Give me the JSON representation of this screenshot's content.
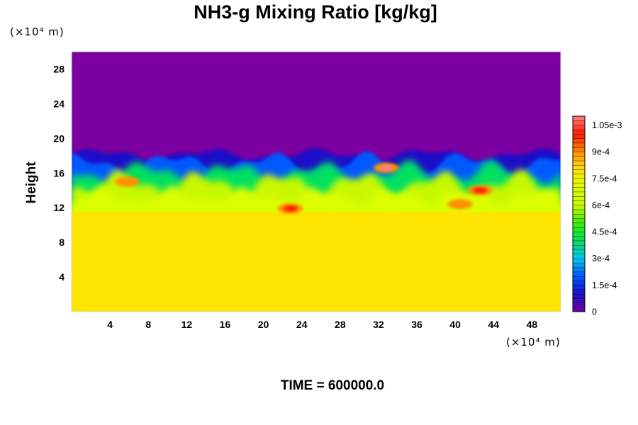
{
  "chart_data": {
    "type": "heatmap",
    "title": "NH3-g Mixing Ratio [kg/kg]",
    "ylabel": "Height",
    "xunit": "(×10⁴ m)",
    "yunit": "(×10⁴ m)",
    "xlim": [
      0,
      51
    ],
    "ylim": [
      0,
      30
    ],
    "xticks": [
      "4",
      "8",
      "12",
      "16",
      "20",
      "24",
      "28",
      "32",
      "36",
      "40",
      "44",
      "48"
    ],
    "yticks": [
      "4",
      "8",
      "12",
      "16",
      "20",
      "24",
      "28"
    ],
    "colorbar": {
      "range": [
        0,
        0.0011
      ],
      "ticks": [
        "0",
        "1.5e-4",
        "3e-4",
        "4.5e-4",
        "6e-4",
        "7.5e-4",
        "9e-4",
        "1.05e-3"
      ]
    },
    "regions": [
      {
        "description_level": "lower",
        "y_range": [
          0,
          11.5
        ],
        "value": 0.00078
      },
      {
        "description_level": "upper",
        "y_range": [
          18,
          30
        ],
        "value": 0.0
      }
    ],
    "hotspots": [
      {
        "x": 32.8,
        "y": 16.6,
        "value": 0.00105
      },
      {
        "x": 42.6,
        "y": 14.0,
        "value": 0.00102
      },
      {
        "x": 22.8,
        "y": 11.9,
        "value": 0.00098
      },
      {
        "x": 40.5,
        "y": 12.4,
        "value": 0.00095
      },
      {
        "x": 5.8,
        "y": 15.0,
        "value": 0.00092
      }
    ],
    "time_label": "TIME = 600000.0"
  },
  "colors": {
    "stop_0": "#7b00a2",
    "stop_1": "#1a10c8",
    "stop_2": "#0058ff",
    "stop_3": "#00c8f0",
    "stop_4": "#00e060",
    "stop_5": "#3cf000",
    "stop_6": "#c8f800",
    "stop_7": "#dcff00",
    "stop_8": "#ffe400",
    "stop_9": "#ff9000",
    "stop_10": "#ff1800",
    "stop_11": "#ff8080"
  }
}
